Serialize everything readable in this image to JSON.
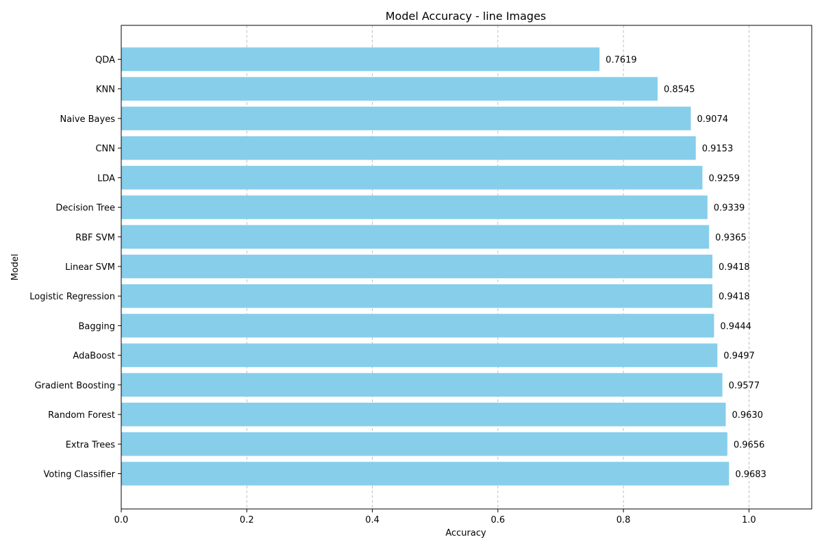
{
  "chart_data": {
    "type": "bar",
    "orientation": "horizontal",
    "title": "Model Accuracy - line Images",
    "xlabel": "Accuracy",
    "ylabel": "Model",
    "xlim": [
      0,
      1.1
    ],
    "xticks": [
      0.0,
      0.2,
      0.4,
      0.6,
      0.8,
      1.0
    ],
    "xtick_labels": [
      "0.0",
      "0.2",
      "0.4",
      "0.6",
      "0.8",
      "1.0"
    ],
    "grid": "x-dashed",
    "bar_color": "#87ceeb",
    "categories": [
      "QDA",
      "KNN",
      "Naive Bayes",
      "CNN",
      "LDA",
      "Decision Tree",
      "RBF SVM",
      "Linear SVM",
      "Logistic Regression",
      "Bagging",
      "AdaBoost",
      "Gradient Boosting",
      "Random Forest",
      "Extra Trees",
      "Voting Classifier"
    ],
    "values": [
      0.7619,
      0.8545,
      0.9074,
      0.9153,
      0.9259,
      0.9339,
      0.9365,
      0.9418,
      0.9418,
      0.9444,
      0.9497,
      0.9577,
      0.963,
      0.9656,
      0.9683
    ],
    "value_labels": [
      "0.7619",
      "0.8545",
      "0.9074",
      "0.9153",
      "0.9259",
      "0.9339",
      "0.9365",
      "0.9418",
      "0.9418",
      "0.9444",
      "0.9497",
      "0.9577",
      "0.9630",
      "0.9656",
      "0.9683"
    ]
  }
}
